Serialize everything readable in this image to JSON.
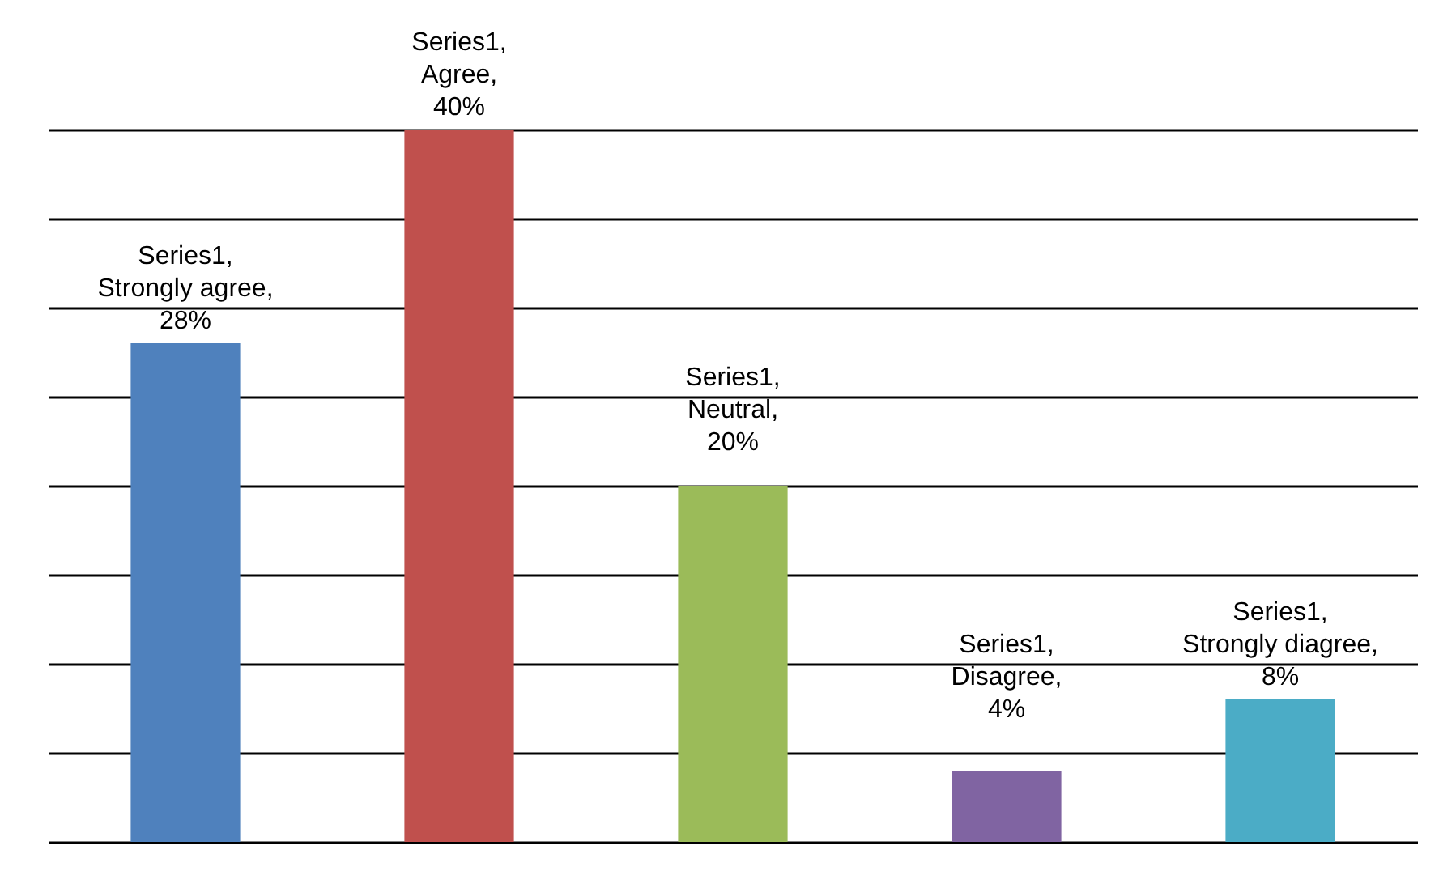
{
  "chart_data": {
    "type": "bar",
    "categories": [
      null,
      null,
      null,
      null,
      null
    ],
    "values": [
      28,
      40,
      20,
      4,
      8
    ],
    "colors": [
      "#4f81bd",
      "#c0504d",
      "#9bbb59",
      "#8064a2",
      "#4bacc6"
    ],
    "value_labels": [
      "Series1, Strongly agree, 28%",
      "Series1, Agree, 40%",
      "Series1, Neutral, 20%",
      "Series1, Disagree, 4%",
      "Series1, Strongly diagree, 8%"
    ],
    "ylim": [
      0,
      40
    ],
    "yticks": [
      {
        "value": 0,
        "label": null
      },
      {
        "value": 5,
        "label": null
      },
      {
        "value": 10,
        "label": null
      },
      {
        "value": 15,
        "label": null
      },
      {
        "value": 20,
        "label": null
      },
      {
        "value": 25,
        "label": null
      },
      {
        "value": 30,
        "label": null
      },
      {
        "value": 35,
        "label": null
      },
      {
        "value": 40,
        "label": null
      }
    ],
    "grid": "y"
  }
}
